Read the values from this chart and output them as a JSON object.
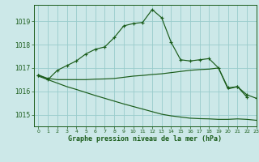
{
  "background_color": "#cce8e8",
  "grid_color": "#99cccc",
  "line_color": "#1a5c1a",
  "title": "Graphe pression niveau de la mer (hPa)",
  "xlim": [
    -0.5,
    23
  ],
  "ylim": [
    1014.5,
    1019.7
  ],
  "yticks": [
    1015,
    1016,
    1017,
    1018,
    1019
  ],
  "xticks": [
    0,
    1,
    2,
    3,
    4,
    5,
    6,
    7,
    8,
    9,
    10,
    11,
    12,
    13,
    14,
    15,
    16,
    17,
    18,
    19,
    20,
    21,
    22,
    23
  ],
  "series": [
    {
      "x": [
        0,
        1,
        2,
        3,
        4,
        5,
        6,
        7,
        8,
        9,
        10,
        11,
        12,
        13,
        14,
        15,
        16,
        17,
        18,
        19,
        20,
        21,
        22
      ],
      "y": [
        1016.7,
        1016.5,
        1016.9,
        1017.1,
        1017.3,
        1017.6,
        1017.8,
        1017.9,
        1018.3,
        1018.8,
        1018.9,
        1018.95,
        1019.5,
        1019.15,
        1018.1,
        1017.35,
        1017.3,
        1017.35,
        1017.4,
        1017.0,
        1016.15,
        1016.2,
        1015.75
      ],
      "marker": true
    },
    {
      "x": [
        0,
        1,
        2,
        3,
        4,
        5,
        6,
        7,
        8,
        9,
        10,
        11,
        12,
        13,
        14,
        15,
        16,
        17,
        18,
        19,
        20,
        21,
        22,
        23
      ],
      "y": [
        1016.7,
        1016.55,
        1016.5,
        1016.5,
        1016.5,
        1016.5,
        1016.52,
        1016.53,
        1016.55,
        1016.6,
        1016.65,
        1016.68,
        1016.72,
        1016.75,
        1016.8,
        1016.85,
        1016.9,
        1016.93,
        1016.95,
        1017.0,
        1016.1,
        1016.2,
        1015.85,
        1015.7
      ],
      "marker": true,
      "markevery": [
        0,
        1,
        21,
        22,
        23
      ]
    },
    {
      "x": [
        0,
        1,
        2,
        3,
        4,
        5,
        6,
        7,
        8,
        9,
        10,
        11,
        12,
        13,
        14,
        15,
        16,
        17,
        18,
        19,
        20,
        21,
        22,
        23
      ],
      "y": [
        1016.65,
        1016.5,
        1016.35,
        1016.2,
        1016.08,
        1015.95,
        1015.82,
        1015.7,
        1015.58,
        1015.46,
        1015.35,
        1015.24,
        1015.13,
        1015.02,
        1014.95,
        1014.9,
        1014.85,
        1014.83,
        1014.82,
        1014.8,
        1014.8,
        1014.82,
        1014.8,
        1014.76
      ],
      "marker": false
    }
  ]
}
